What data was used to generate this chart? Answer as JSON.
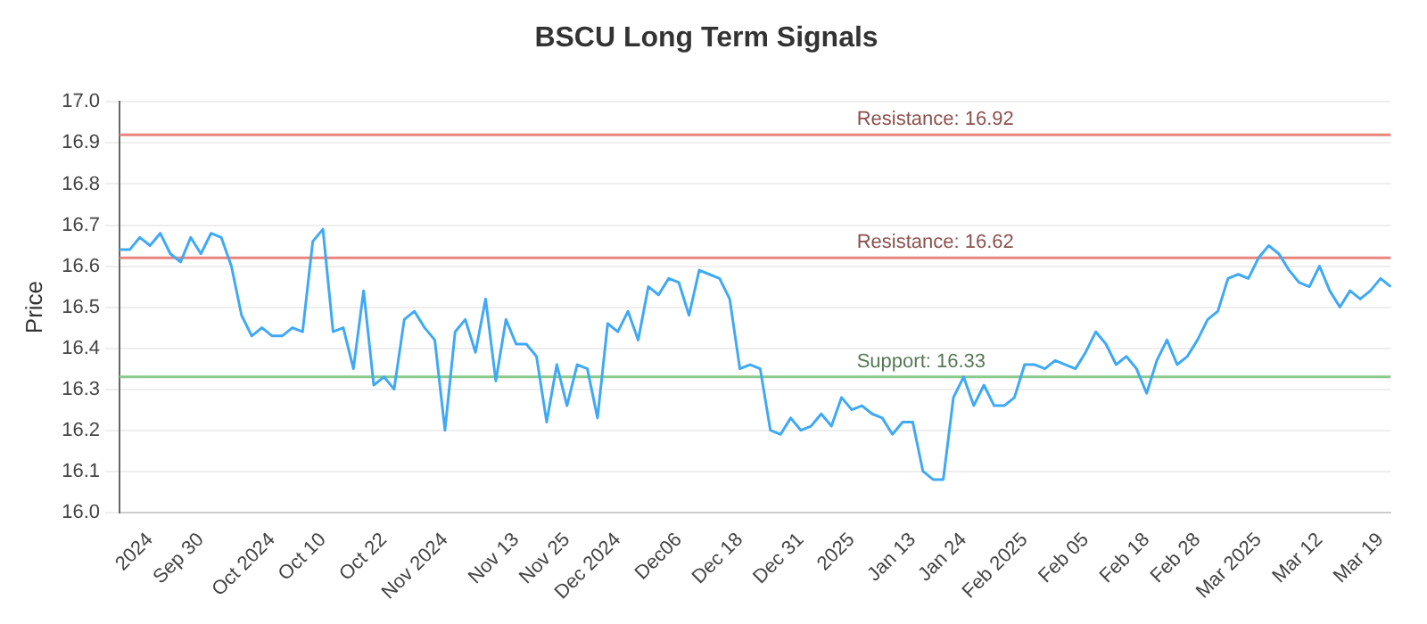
{
  "chart_data": {
    "type": "line",
    "title": "BSCU Long Term Signals",
    "ylabel": "Price",
    "categories": [
      null,
      null,
      null,
      "2024",
      null,
      null,
      null,
      null,
      "Sep 30",
      null,
      null,
      null,
      null,
      null,
      null,
      "Oct 2024",
      null,
      null,
      null,
      null,
      "Oct 10",
      null,
      null,
      null,
      null,
      null,
      "Oct 22",
      null,
      null,
      null,
      null,
      null,
      "Nov 2024",
      null,
      null,
      null,
      null,
      null,
      null,
      "Nov 13",
      null,
      null,
      null,
      null,
      "Nov 25",
      null,
      null,
      null,
      null,
      "Dec 2024",
      null,
      null,
      null,
      null,
      null,
      "Dec06",
      null,
      null,
      null,
      null,
      null,
      "Dec 18",
      null,
      null,
      null,
      null,
      null,
      "Dec 31",
      null,
      null,
      null,
      null,
      "2025",
      null,
      null,
      null,
      null,
      null,
      "Jan 13",
      null,
      null,
      null,
      null,
      "Jan 24",
      null,
      null,
      null,
      null,
      null,
      "Feb 2025",
      null,
      null,
      null,
      null,
      null,
      "Feb 05",
      null,
      null,
      null,
      null,
      null,
      "Feb 18",
      null,
      null,
      null,
      null,
      "Feb 28",
      null,
      null,
      null,
      null,
      null,
      "Mar 2025",
      null,
      null,
      null,
      null,
      null,
      "Mar 12",
      null,
      null,
      null,
      null,
      null,
      "Mar 19",
      null
    ],
    "series": [
      {
        "color": "#3fa9f5",
        "values": [
          16.64,
          16.64,
          16.67,
          16.65,
          16.68,
          16.63,
          16.61,
          16.67,
          16.63,
          16.68,
          16.67,
          16.6,
          16.48,
          16.43,
          16.45,
          16.43,
          16.43,
          16.45,
          16.44,
          16.66,
          16.69,
          16.44,
          16.45,
          16.35,
          16.54,
          16.31,
          16.33,
          16.3,
          16.47,
          16.49,
          16.45,
          16.42,
          16.2,
          16.44,
          16.47,
          16.39,
          16.52,
          16.32,
          16.47,
          16.41,
          16.41,
          16.38,
          16.22,
          16.36,
          16.26,
          16.36,
          16.35,
          16.23,
          16.46,
          16.44,
          16.49,
          16.42,
          16.55,
          16.53,
          16.57,
          16.56,
          16.48,
          16.59,
          16.58,
          16.57,
          16.52,
          16.35,
          16.36,
          16.35,
          16.2,
          16.19,
          16.23,
          16.2,
          16.21,
          16.24,
          16.21,
          16.28,
          16.25,
          16.26,
          16.24,
          16.23,
          16.19,
          16.22,
          16.22,
          16.1,
          16.08,
          16.08,
          16.28,
          16.33,
          16.26,
          16.31,
          16.26,
          16.26,
          16.28,
          16.36,
          16.36,
          16.35,
          16.37,
          16.36,
          16.35,
          16.39,
          16.44,
          16.41,
          16.36,
          16.38,
          16.35,
          16.29,
          16.37,
          16.42,
          16.36,
          16.38,
          16.42,
          16.47,
          16.49,
          16.57,
          16.58,
          16.57,
          16.62,
          16.65,
          16.63,
          16.59,
          16.56,
          16.55,
          16.6,
          16.54,
          16.5,
          16.54,
          16.52,
          16.54,
          16.57,
          16.55
        ]
      }
    ],
    "ylim": [
      16,
      17
    ],
    "yticks": [
      {
        "value": 16,
        "label": "16.0"
      },
      16.1,
      16.2,
      16.3,
      16.4,
      16.5,
      16.6,
      16.7,
      16.8,
      16.9,
      {
        "value": 17,
        "label": "17.0"
      }
    ],
    "grid": "y",
    "marker": "none",
    "line_style": "solid",
    "legend": false,
    "ref_lines": [
      {
        "axis": "y",
        "value": 16.92,
        "label": "Resistance: 16.92",
        "color": "#e8857f"
      },
      {
        "axis": "y",
        "value": 16.62,
        "label": "Resistance: 16.62",
        "color": "#e8857f"
      },
      {
        "axis": "y",
        "value": 16.33,
        "label": "Support: 16.33",
        "color": "#8cc98c"
      }
    ]
  }
}
